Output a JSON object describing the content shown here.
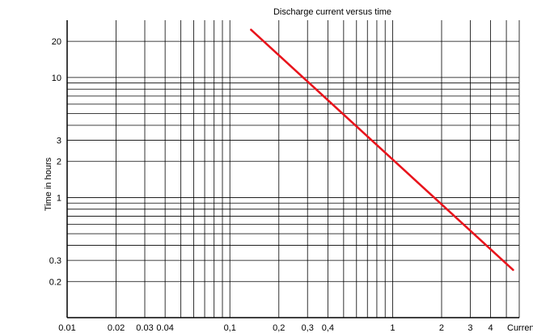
{
  "chart_data": {
    "type": "line",
    "title": "Discharge current versus time",
    "xlabel": "Current",
    "ylabel": "Time in hours",
    "x_scale": "log",
    "y_scale": "log",
    "xlim": [
      0.01,
      6
    ],
    "ylim": [
      0.1,
      30
    ],
    "x_tick_labels": [
      {
        "v": 0.01,
        "label": "0.01"
      },
      {
        "v": 0.02,
        "label": "0.02"
      },
      {
        "v": 0.03,
        "label": "0.03"
      },
      {
        "v": 0.04,
        "label": "0.04"
      },
      {
        "v": 0.1,
        "label": "0,1"
      },
      {
        "v": 0.2,
        "label": "0,2"
      },
      {
        "v": 0.3,
        "label": "0,3"
      },
      {
        "v": 0.4,
        "label": "0,4"
      },
      {
        "v": 1,
        "label": "1"
      },
      {
        "v": 2,
        "label": "2"
      },
      {
        "v": 3,
        "label": "3"
      },
      {
        "v": 4,
        "label": "4"
      }
    ],
    "y_tick_labels": [
      {
        "v": 20,
        "label": "20"
      },
      {
        "v": 10,
        "label": "10"
      },
      {
        "v": 3,
        "label": "3"
      },
      {
        "v": 2,
        "label": "2"
      },
      {
        "v": 1,
        "label": "1"
      },
      {
        "v": 0.3,
        "label": "0.3"
      },
      {
        "v": 0.2,
        "label": "0.2"
      }
    ],
    "x_gridlines": [
      0.01,
      0.02,
      0.03,
      0.04,
      0.05,
      0.06,
      0.07,
      0.08,
      0.09,
      0.1,
      0.2,
      0.3,
      0.4,
      0.5,
      0.6,
      0.7,
      0.8,
      0.9,
      1,
      2,
      3,
      4,
      5,
      6
    ],
    "y_gridlines": [
      0.2,
      0.3,
      0.4,
      0.5,
      0.6,
      0.7,
      0.8,
      0.9,
      1,
      2,
      3,
      4,
      5,
      6,
      7,
      8,
      9,
      10,
      20
    ],
    "grid": true,
    "series": [
      {
        "color": "#e8141c",
        "points": [
          {
            "x": 0.135,
            "y": 25
          },
          {
            "x": 5.5,
            "y": 0.25
          }
        ]
      }
    ]
  }
}
